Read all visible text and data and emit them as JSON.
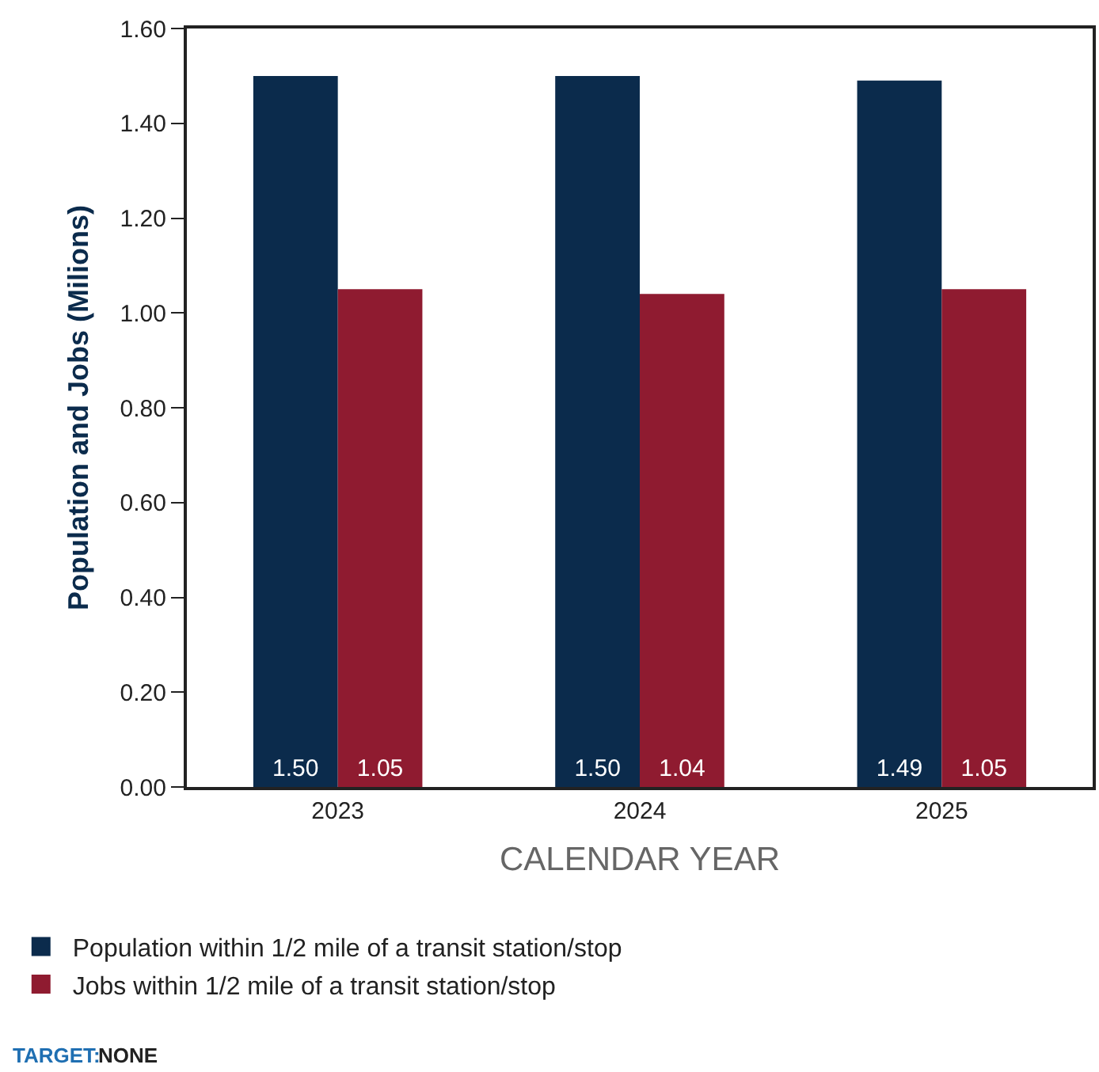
{
  "chart_data": {
    "type": "bar",
    "xlabel": "CALENDAR YEAR",
    "ylabel": "Population and Jobs (Milions)",
    "categories": [
      "2023",
      "2024",
      "2025"
    ],
    "series": [
      {
        "name": "Population within 1/2 mile of a transit station/stop",
        "color": "#0b2b4c",
        "values": [
          1.5,
          1.5,
          1.49
        ],
        "value_labels": [
          "1.50",
          "1.50",
          "1.49"
        ]
      },
      {
        "name": "Jobs within 1/2 mile of a transit station/stop",
        "color": "#8f1b30",
        "values": [
          1.05,
          1.04,
          1.05
        ],
        "value_labels": [
          "1.05",
          "1.04",
          "1.05"
        ]
      }
    ],
    "ylim": [
      0,
      1.6
    ],
    "yticks": [
      {
        "value": 0,
        "label": "0.00"
      },
      {
        "value": 0.2,
        "label": "0.20"
      },
      {
        "value": 0.4,
        "label": "0.40"
      },
      {
        "value": 0.6,
        "label": "0.60"
      },
      {
        "value": 0.8,
        "label": "0.80"
      },
      {
        "value": 1.0,
        "label": "1.00"
      },
      {
        "value": 1.2,
        "label": "1.20"
      },
      {
        "value": 1.4,
        "label": "1.40"
      },
      {
        "value": 1.6,
        "label": "1.60"
      }
    ],
    "legend": "bottom",
    "annotations": [
      "TARGET:",
      "NONE"
    ]
  }
}
